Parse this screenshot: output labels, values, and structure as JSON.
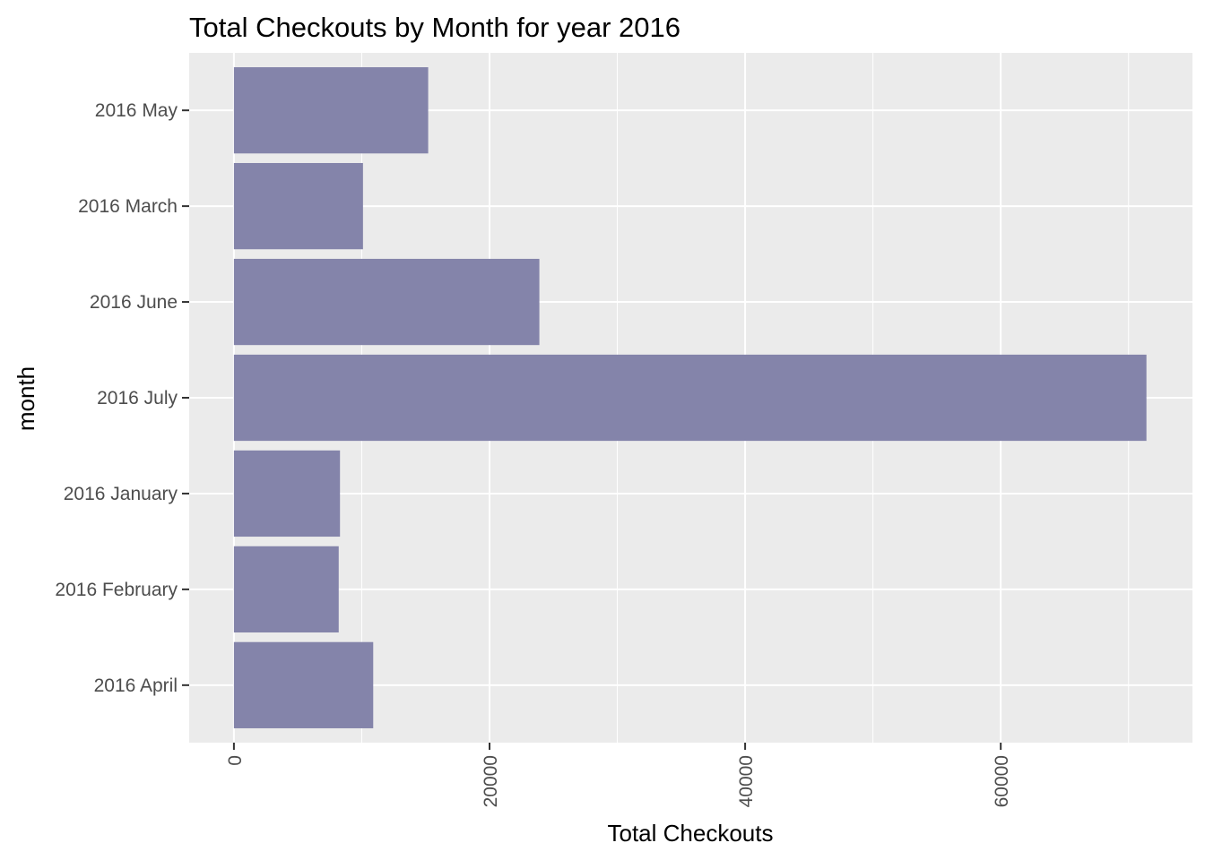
{
  "chart_data": {
    "type": "bar",
    "orientation": "horizontal",
    "title": "Total Checkouts by Month for year 2016",
    "xlabel": "Total Checkouts",
    "ylabel": "month",
    "categories": [
      "2016 April",
      "2016 February",
      "2016 January",
      "2016 July",
      "2016 June",
      "2016 March",
      "2016 May"
    ],
    "values": [
      10900,
      8200,
      8300,
      71400,
      23900,
      10100,
      15200
    ],
    "xlim": [
      -3500,
      75000
    ],
    "x_ticks": [
      0,
      20000,
      40000,
      60000
    ],
    "x_tick_labels": [
      "0",
      "20000",
      "40000",
      "60000"
    ],
    "x_tick_label_rotation": "vertical",
    "grid": true,
    "legend": "none",
    "bar_color": "#8484aa",
    "panel_background": "#ebebeb",
    "grid_color": "#ffffff"
  }
}
